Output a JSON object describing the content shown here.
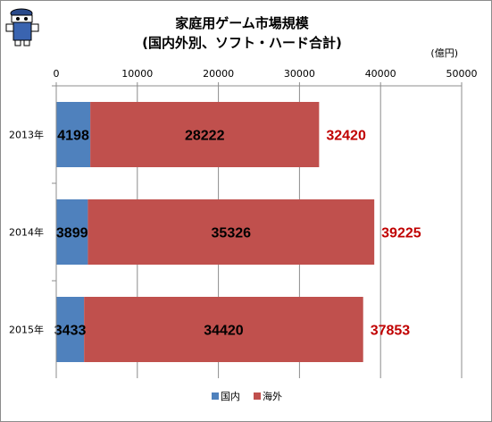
{
  "chart_data": {
    "type": "bar",
    "orientation": "horizontal",
    "stacked": true,
    "title": "家庭用ゲーム市場規模",
    "subtitle": "(国内外別、ソフト・ハード合計)",
    "unit_label": "(億円)",
    "categories": [
      "2013年",
      "2014年",
      "2015年"
    ],
    "series": [
      {
        "name": "国内",
        "values": [
          4198,
          3899,
          3433
        ],
        "color": "#4f81bd"
      },
      {
        "name": "海外",
        "values": [
          28222,
          35326,
          34420
        ],
        "color": "#c0504d"
      }
    ],
    "totals": [
      32420,
      39225,
      37853
    ],
    "total_label_color": "#c00000",
    "x_ticks": [
      0,
      10000,
      20000,
      30000,
      40000,
      50000
    ],
    "xlim": [
      0,
      50000
    ],
    "grid": true,
    "legend_position": "bottom"
  }
}
